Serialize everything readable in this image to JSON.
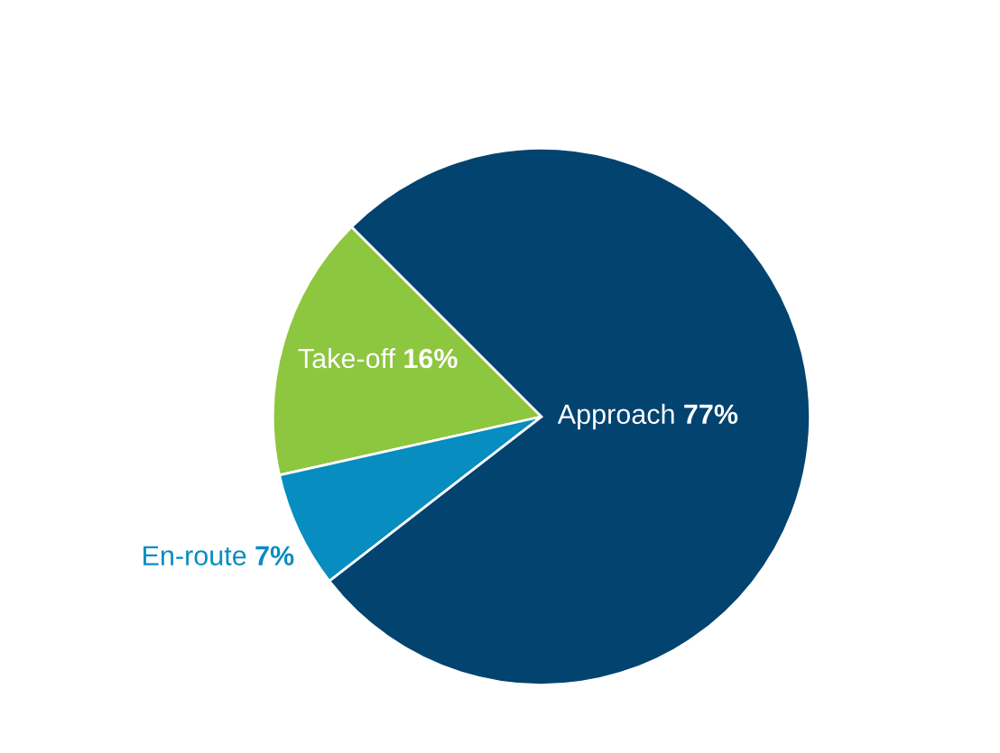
{
  "chart_data": {
    "type": "pie",
    "categories": [
      "Take-off",
      "En-route",
      "Approach"
    ],
    "values": [
      16,
      7,
      77
    ],
    "value_labels": [
      "16%",
      "7%",
      "77%"
    ],
    "colors": [
      "#8dc63f",
      "#078dbf",
      "#02436f"
    ]
  }
}
